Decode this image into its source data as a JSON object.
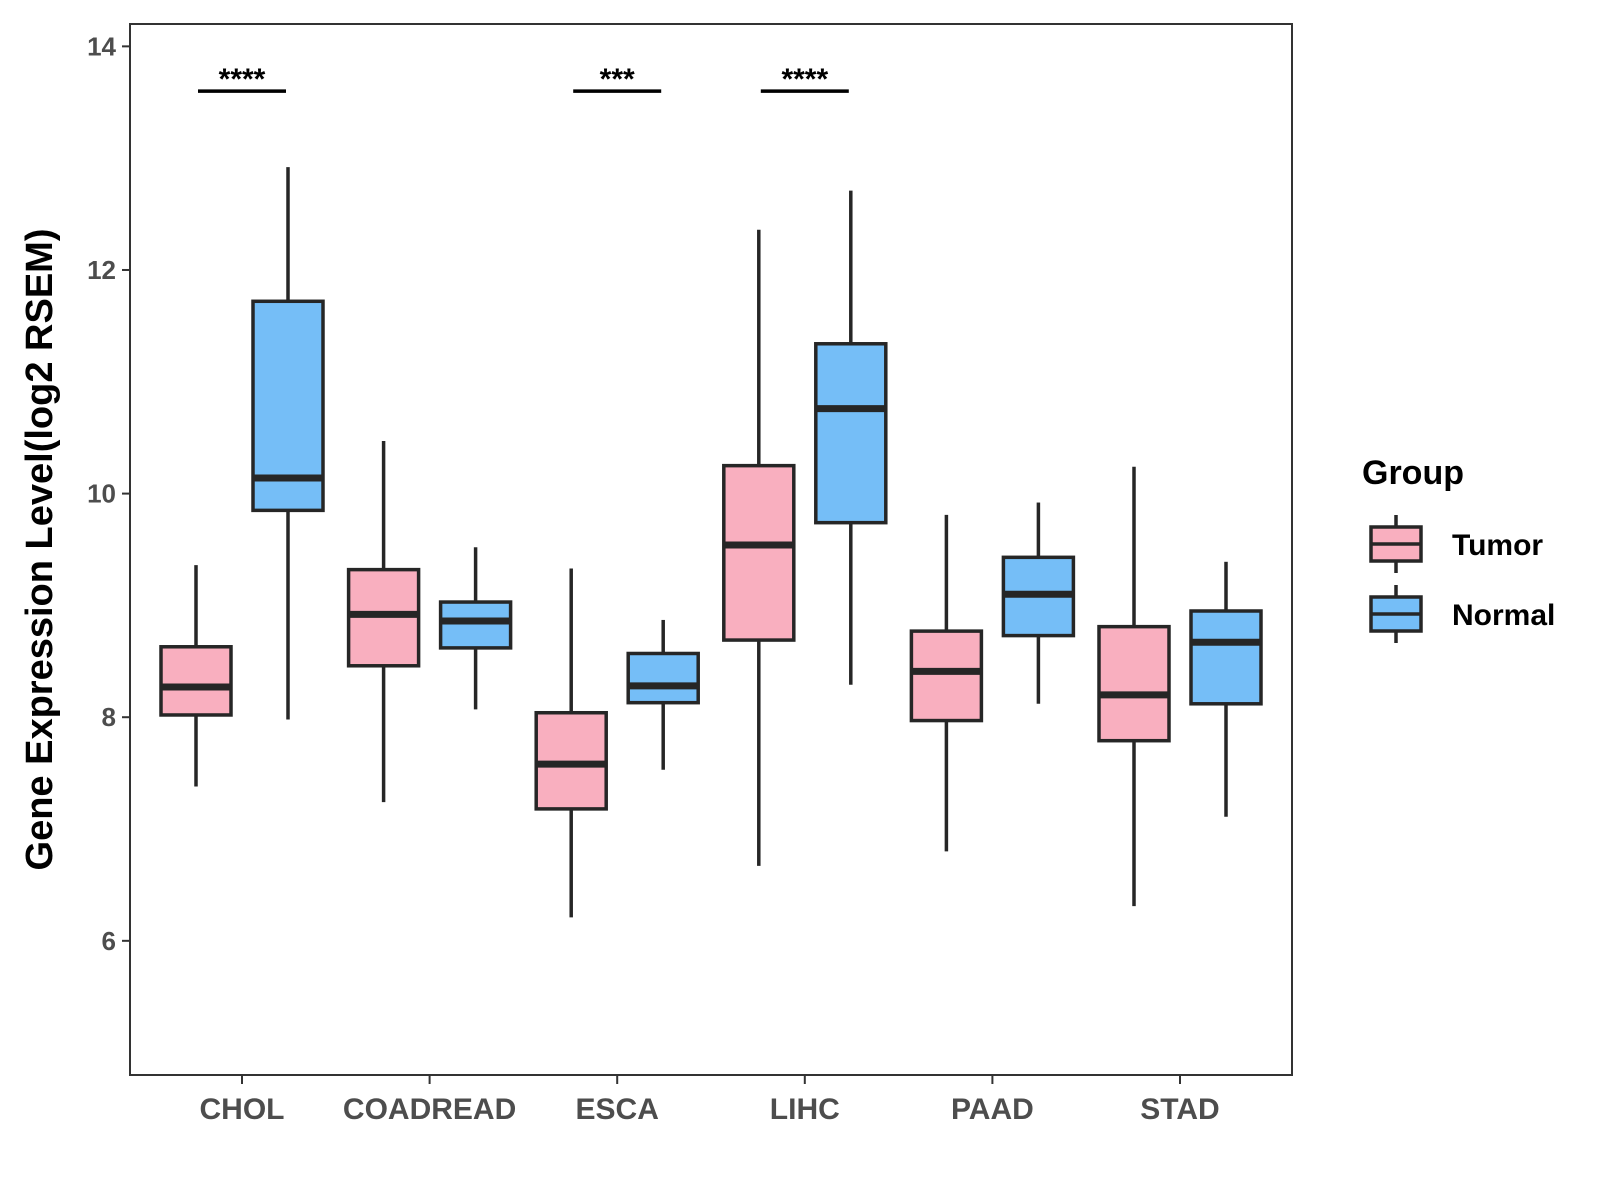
{
  "chart_data": {
    "type": "boxplot",
    "title": "",
    "xlabel": "",
    "ylabel": "Gene Expression Level(log2 RSEM)",
    "ylim": [
      4.8,
      14.2
    ],
    "yticks": [
      6,
      8,
      10,
      12,
      14
    ],
    "categories": [
      "CHOL",
      "COADREAD",
      "ESCA",
      "LIHC",
      "PAAD",
      "STAD"
    ],
    "legend": {
      "title": "Group",
      "position": "right",
      "entries": [
        {
          "name": "Tumor",
          "color": "#F9AFBF"
        },
        {
          "name": "Normal",
          "color": "#75BEF7"
        }
      ]
    },
    "series": [
      {
        "name": "Tumor",
        "color": "#F9AFBF",
        "boxes": [
          {
            "category": "CHOL",
            "min": 7.38,
            "q1": 8.02,
            "median": 8.27,
            "q3": 8.63,
            "max": 9.36
          },
          {
            "category": "COADREAD",
            "min": 7.24,
            "q1": 8.46,
            "median": 8.92,
            "q3": 9.32,
            "max": 10.47
          },
          {
            "category": "ESCA",
            "min": 6.21,
            "q1": 7.18,
            "median": 7.58,
            "q3": 8.04,
            "max": 9.33
          },
          {
            "category": "LIHC",
            "min": 6.67,
            "q1": 8.69,
            "median": 9.54,
            "q3": 10.25,
            "max": 12.36
          },
          {
            "category": "PAAD",
            "min": 6.8,
            "q1": 7.97,
            "median": 8.41,
            "q3": 8.77,
            "max": 9.81
          },
          {
            "category": "STAD",
            "min": 6.31,
            "q1": 7.79,
            "median": 8.2,
            "q3": 8.81,
            "max": 10.24
          }
        ]
      },
      {
        "name": "Normal",
        "color": "#75BEF7",
        "boxes": [
          {
            "category": "CHOL",
            "min": 7.98,
            "q1": 9.85,
            "median": 10.14,
            "q3": 11.72,
            "max": 12.92
          },
          {
            "category": "COADREAD",
            "min": 8.07,
            "q1": 8.62,
            "median": 8.86,
            "q3": 9.03,
            "max": 9.52
          },
          {
            "category": "ESCA",
            "min": 7.53,
            "q1": 8.13,
            "median": 8.28,
            "q3": 8.57,
            "max": 8.87
          },
          {
            "category": "LIHC",
            "min": 8.29,
            "q1": 9.74,
            "median": 10.76,
            "q3": 11.34,
            "max": 12.71
          },
          {
            "category": "PAAD",
            "min": 8.12,
            "q1": 8.73,
            "median": 9.1,
            "q3": 9.43,
            "max": 9.92
          },
          {
            "category": "STAD",
            "min": 7.11,
            "q1": 8.12,
            "median": 8.67,
            "q3": 8.95,
            "max": 9.39
          }
        ]
      }
    ],
    "significance": [
      {
        "category": "CHOL",
        "label": "****",
        "y": 13.6
      },
      {
        "category": "ESCA",
        "label": "***",
        "y": 13.6
      },
      {
        "category": "LIHC",
        "label": "****",
        "y": 13.6
      }
    ]
  }
}
